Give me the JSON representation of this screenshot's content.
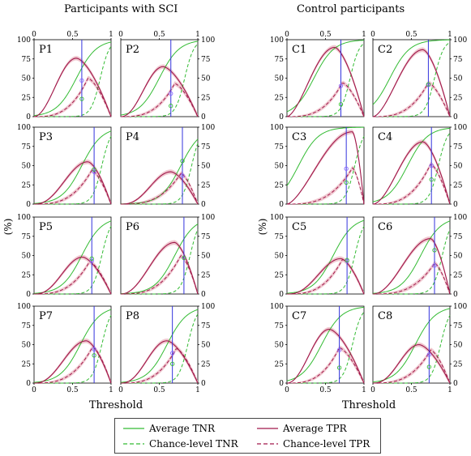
{
  "titles": {
    "left_group": "Participants with SCI",
    "right_group": "Control participants"
  },
  "axes": {
    "ylabel": "(%)",
    "xlabel": "Threshold"
  },
  "legend": {
    "avg_tnr": "Average TNR",
    "avg_tpr": "Average TPR",
    "chance_tnr": "Chance-level TNR",
    "chance_tpr": "Chance-level TPR"
  },
  "colors": {
    "tnr": "#33bb33",
    "tpr": "#a0184a",
    "tpr_band": "#f0c8d0",
    "threshold_line": "#3333dd",
    "marker": "#8866ff"
  },
  "chart_data": {
    "type": "line",
    "x_range": [
      0,
      1
    ],
    "y_range": [
      0,
      100
    ],
    "x_ticks": [
      0,
      0.5,
      1
    ],
    "y_ticks": [
      0,
      25,
      50,
      75,
      100
    ],
    "grid": false,
    "panels": [
      {
        "label": "P1",
        "tpr_peak": [
          0.55,
          76
        ],
        "tnr_mid": 0.55,
        "chance_tpr_peak": [
          0.7,
          50
        ],
        "chance_tnr_mid": 0.86,
        "threshold": 0.62,
        "tpr_marker": 47,
        "tnr_marker": 23
      },
      {
        "label": "P2",
        "tpr_peak": [
          0.55,
          65
        ],
        "tnr_mid": 0.5,
        "chance_tpr_peak": [
          0.7,
          43
        ],
        "chance_tnr_mid": 0.83,
        "threshold": 0.65,
        "tpr_marker": 30,
        "tnr_marker": 14
      },
      {
        "label": "P3",
        "tpr_peak": [
          0.7,
          55
        ],
        "tnr_mid": 0.62,
        "chance_tpr_peak": [
          0.75,
          44
        ],
        "chance_tnr_mid": 0.88,
        "threshold": 0.78,
        "tpr_marker": 42,
        "tnr_marker": 45
      },
      {
        "label": "P4",
        "tpr_peak": [
          0.65,
          42
        ],
        "tnr_mid": 0.78,
        "chance_tpr_peak": [
          0.78,
          40
        ],
        "chance_tnr_mid": 0.92,
        "threshold": 0.8,
        "tpr_marker": 37,
        "tnr_marker": 56
      },
      {
        "label": "P5",
        "tpr_peak": [
          0.63,
          48
        ],
        "tnr_mid": 0.62,
        "chance_tpr_peak": [
          0.72,
          42
        ],
        "chance_tnr_mid": 0.88,
        "threshold": 0.75,
        "tpr_marker": 43,
        "tnr_marker": 46
      },
      {
        "label": "P6",
        "tpr_peak": [
          0.7,
          67
        ],
        "tnr_mid": 0.7,
        "chance_tpr_peak": [
          0.78,
          50
        ],
        "chance_tnr_mid": 0.9,
        "threshold": 0.82,
        "tpr_marker": 47,
        "tnr_marker": 47
      },
      {
        "label": "P7",
        "tpr_peak": [
          0.68,
          55
        ],
        "tnr_mid": 0.6,
        "chance_tpr_peak": [
          0.76,
          47
        ],
        "chance_tnr_mid": 0.88,
        "threshold": 0.78,
        "tpr_marker": 44,
        "tnr_marker": 36
      },
      {
        "label": "P8",
        "tpr_peak": [
          0.6,
          55
        ],
        "tnr_mid": 0.6,
        "chance_tpr_peak": [
          0.72,
          45
        ],
        "chance_tnr_mid": 0.87,
        "threshold": 0.67,
        "tpr_marker": 39,
        "tnr_marker": 25
      },
      {
        "label": "C1",
        "tpr_peak": [
          0.62,
          90
        ],
        "tnr_mid": 0.35,
        "chance_tpr_peak": [
          0.72,
          44
        ],
        "chance_tnr_mid": 0.82,
        "threshold": 0.7,
        "tpr_marker": 40,
        "tnr_marker": 16
      },
      {
        "label": "C2",
        "tpr_peak": [
          0.65,
          87
        ],
        "tnr_mid": 0.22,
        "chance_tpr_peak": [
          0.72,
          44
        ],
        "chance_tnr_mid": 0.8,
        "threshold": 0.72,
        "tpr_marker": 41,
        "tnr_marker": 42
      },
      {
        "label": "C3",
        "tpr_peak": [
          0.85,
          94
        ],
        "tnr_mid": 0.15,
        "chance_tpr_peak": [
          0.85,
          47
        ],
        "chance_tnr_mid": 0.88,
        "threshold": 0.77,
        "tpr_marker": 46,
        "tnr_marker": 28
      },
      {
        "label": "C4",
        "tpr_peak": [
          0.65,
          81
        ],
        "tnr_mid": 0.45,
        "chance_tpr_peak": [
          0.75,
          52
        ],
        "chance_tnr_mid": 0.85,
        "threshold": 0.76,
        "tpr_marker": 50,
        "tnr_marker": 32
      },
      {
        "label": "C5",
        "tpr_peak": [
          0.7,
          46
        ],
        "tnr_mid": 0.6,
        "chance_tpr_peak": [
          0.72,
          45
        ],
        "chance_tnr_mid": 0.88,
        "threshold": 0.78,
        "tpr_marker": 43,
        "tnr_marker": 44
      },
      {
        "label": "C6",
        "tpr_peak": [
          0.75,
          72
        ],
        "tnr_mid": 0.62,
        "chance_tpr_peak": [
          0.8,
          40
        ],
        "chance_tnr_mid": 0.9,
        "threshold": 0.8,
        "tpr_marker": 37,
        "tnr_marker": 57
      },
      {
        "label": "C7",
        "tpr_peak": [
          0.55,
          70
        ],
        "tnr_mid": 0.45,
        "chance_tpr_peak": [
          0.68,
          46
        ],
        "chance_tnr_mid": 0.85,
        "threshold": 0.68,
        "tpr_marker": 43,
        "tnr_marker": 20
      },
      {
        "label": "C8",
        "tpr_peak": [
          0.6,
          50
        ],
        "tnr_mid": 0.55,
        "chance_tpr_peak": [
          0.75,
          43
        ],
        "chance_tnr_mid": 0.88,
        "threshold": 0.73,
        "tpr_marker": 37,
        "tnr_marker": 21
      }
    ]
  }
}
